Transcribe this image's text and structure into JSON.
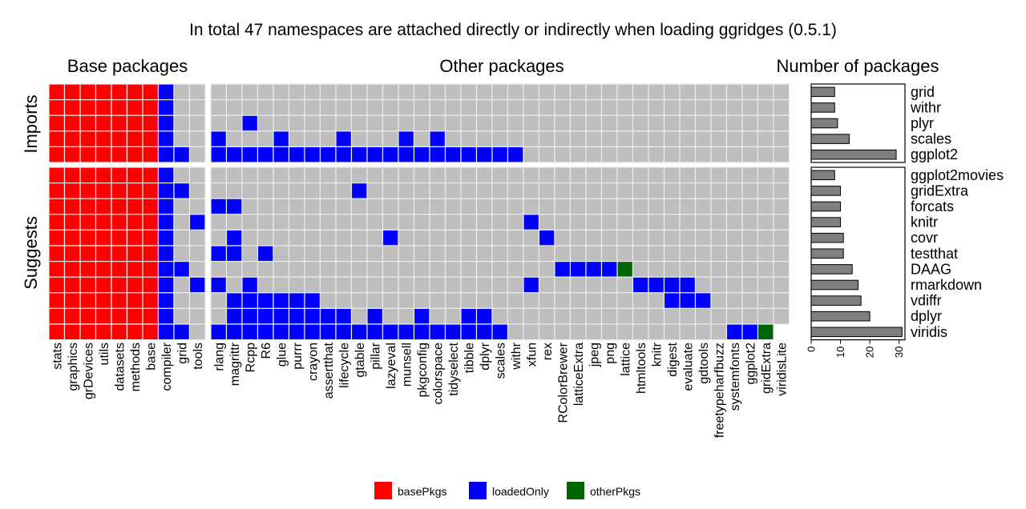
{
  "chart_data": {
    "type": "heatmap",
    "title": "In total 47 namespaces are attached directly or indirectly when loading ggridges (0.5.1)",
    "panel_titles": [
      "Base packages",
      "Other packages",
      "Number of packages"
    ],
    "row_groups": [
      "Imports",
      "Suggests"
    ],
    "base_columns": [
      "stats",
      "graphics",
      "grDevices",
      "utils",
      "datasets",
      "methods",
      "base",
      "compiler",
      "grid",
      "tools"
    ],
    "other_columns": [
      "rlang",
      "magrittr",
      "Rcpp",
      "R6",
      "glue",
      "purrr",
      "crayon",
      "assertthat",
      "lifecycle",
      "gtable",
      "pillar",
      "lazyeval",
      "munsell",
      "pkgconfig",
      "colorspace",
      "tidyselect",
      "tibble",
      "dplyr",
      "scales",
      "withr",
      "xfun",
      "rex",
      "RColorBrewer",
      "latticeExtra",
      "jpeg",
      "png",
      "lattice",
      "htmltools",
      "knitr",
      "digest",
      "evaluate",
      "gdtools",
      "freetypeharfbuzz",
      "systemfonts",
      "ggplot2",
      "gridExtra",
      "viridisLite"
    ],
    "rows": [
      {
        "group": "Imports",
        "name": "grid",
        "count": 8,
        "base": "RRRRRRRB..",
        "other": "....................................."
      },
      {
        "group": "Imports",
        "name": "withr",
        "count": 8,
        "base": "RRRRRRRB..",
        "other": "....................................."
      },
      {
        "group": "Imports",
        "name": "plyr",
        "count": 9,
        "base": "RRRRRRRB..",
        "other": "..B.................................."
      },
      {
        "group": "Imports",
        "name": "scales",
        "count": 13,
        "base": "RRRRRRRB..",
        "other": "B...B...B...B.B......................"
      },
      {
        "group": "Imports",
        "name": "ggplot2",
        "count": 29,
        "base": "RRRRRRRBB.",
        "other": "BBBBBBBBBBBBBBBBBBBB................."
      },
      {
        "group": "Suggests",
        "name": "ggplot2movies",
        "count": 8,
        "base": "RRRRRRRB..",
        "other": "....................................."
      },
      {
        "group": "Suggests",
        "name": "gridExtra",
        "count": 10,
        "base": "RRRRRRRBB.",
        "other": ".........B..........................."
      },
      {
        "group": "Suggests",
        "name": "forcats",
        "count": 10,
        "base": "RRRRRRRB..",
        "other": "BB..................................."
      },
      {
        "group": "Suggests",
        "name": "knitr",
        "count": 10,
        "base": "RRRRRRRB.B",
        "other": "....................B................"
      },
      {
        "group": "Suggests",
        "name": "covr",
        "count": 11,
        "base": "RRRRRRRB..",
        "other": ".B.........B.........B..............."
      },
      {
        "group": "Suggests",
        "name": "testthat",
        "count": 11,
        "base": "RRRRRRRB..",
        "other": "BB.B................................."
      },
      {
        "group": "Suggests",
        "name": "DAAG",
        "count": 14,
        "base": "RRRRRRRBB.",
        "other": "......................BBBBG.........."
      },
      {
        "group": "Suggests",
        "name": "rmarkdown",
        "count": 16,
        "base": "RRRRRRRB.B",
        "other": "B.B.................B......BBBB......"
      },
      {
        "group": "Suggests",
        "name": "vdiffr",
        "count": 17,
        "base": "RRRRRRRB..",
        "other": ".BBBBBB......................BBB....."
      },
      {
        "group": "Suggests",
        "name": "dplyr",
        "count": 20,
        "base": "RRRRRRRB..",
        "other": ".BBBBBBBB.B..B..BB..................."
      },
      {
        "group": "Suggests",
        "name": "viridis",
        "count": 31,
        "base": "RRRRRRRBB.",
        "other": "BBBBBBBBBBBBBBBBBBB..............BBG"
      }
    ],
    "bar_axis_ticks": [
      0,
      10,
      20,
      30
    ],
    "bar_axis_max": 32,
    "legend": [
      {
        "key": "R",
        "label": "basePkgs",
        "color": "#ff0000"
      },
      {
        "key": "B",
        "label": "loadedOnly",
        "color": "#0000ff"
      },
      {
        "key": "G",
        "label": "otherPkgs",
        "color": "#006400"
      }
    ],
    "colors": {
      "empty": "#bebebe",
      "grid": "#ebebeb",
      "bar": "#7f7f7f"
    }
  }
}
